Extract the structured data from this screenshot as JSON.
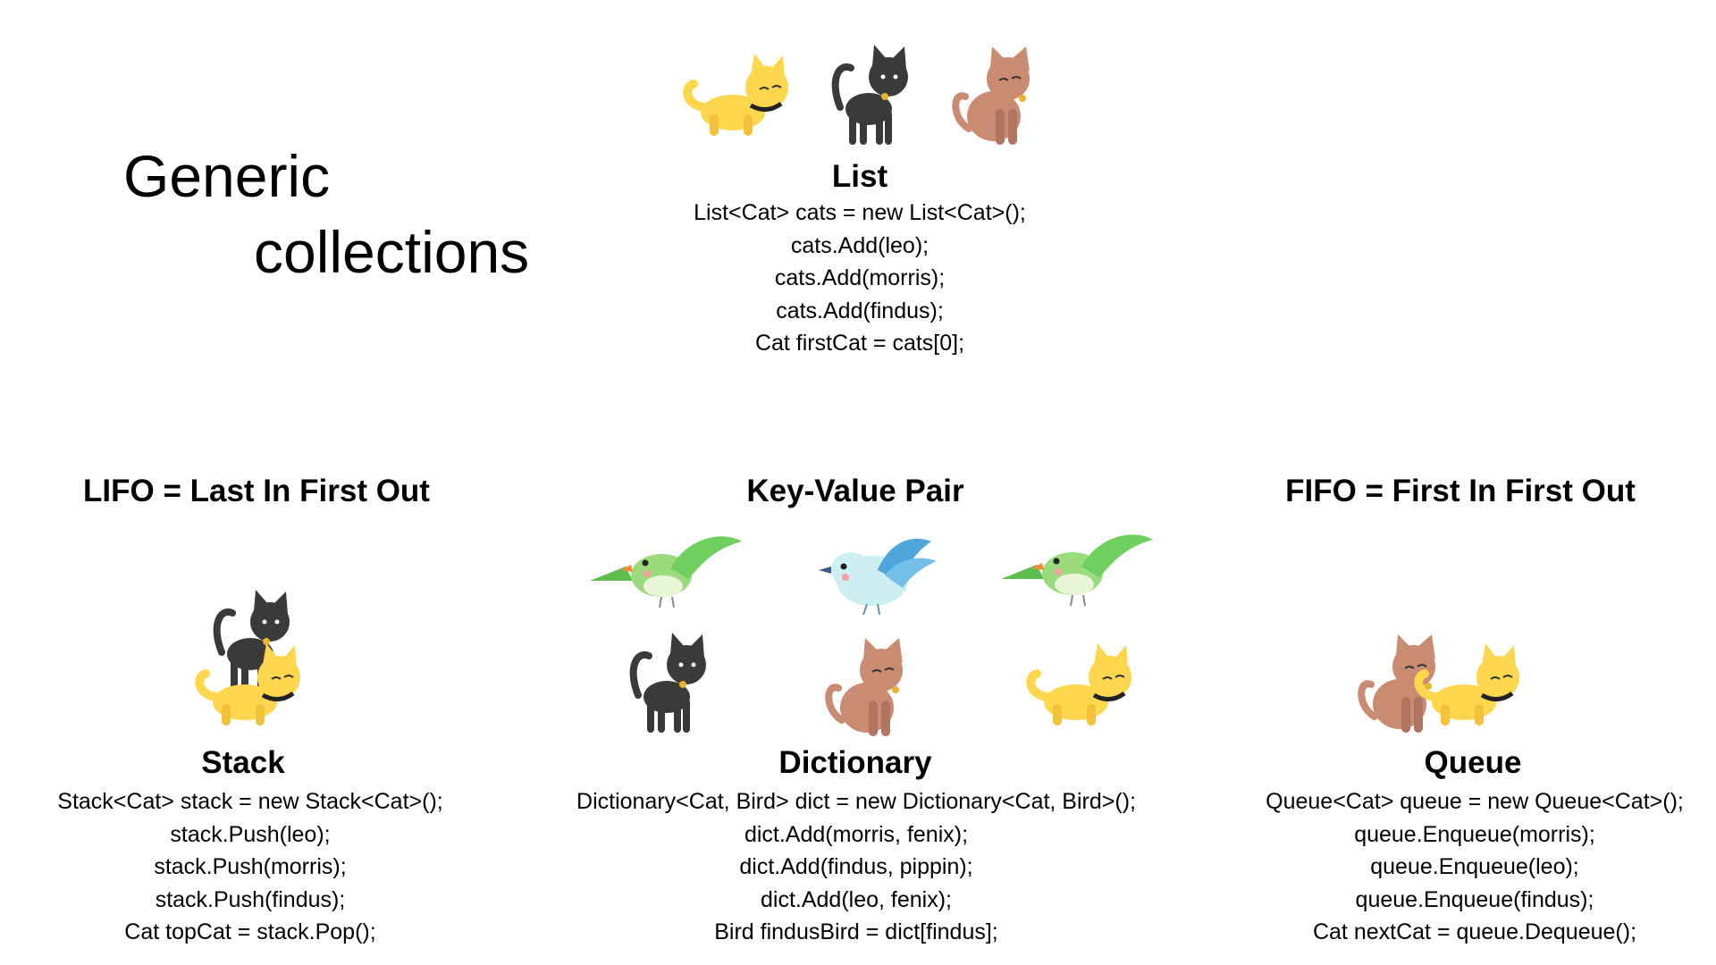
{
  "slide": {
    "title_line1": "Generic",
    "title_line2": "collections"
  },
  "list": {
    "name": "List",
    "code": [
      "List<Cat> cats = new List<Cat>();",
      "cats.Add(leo);",
      "cats.Add(morris);",
      "cats.Add(findus);",
      "Cat firstCat = cats[0];"
    ]
  },
  "stack": {
    "heading": "LIFO = Last In First Out",
    "name": "Stack",
    "code": [
      "Stack<Cat> stack = new Stack<Cat>();",
      "stack.Push(leo);",
      "stack.Push(morris);",
      "stack.Push(findus);",
      "Cat topCat = stack.Pop();"
    ]
  },
  "dictionary": {
    "heading": "Key-Value Pair",
    "name": "Dictionary",
    "code": [
      "Dictionary<Cat, Bird> dict = new Dictionary<Cat, Bird>();",
      "dict.Add(morris, fenix);",
      "dict.Add(findus, pippin);",
      "dict.Add(leo, fenix);",
      "Bird findusBird = dict[findus];"
    ]
  },
  "queue": {
    "heading": "FIFO = First In First Out",
    "name": "Queue",
    "code": [
      "Queue<Cat> queue = new Queue<Cat>();",
      "queue.Enqueue(morris);",
      "queue.Enqueue(leo);",
      "queue.Enqueue(findus);",
      "Cat nextCat = queue.Dequeue();"
    ]
  },
  "colors": {
    "yellow_cat": "#FFD74F",
    "black_cat": "#3A3A3A",
    "brown_cat": "#C98B72",
    "green_bird": "#6FCF5F",
    "blue_bird": "#74BFE8"
  }
}
